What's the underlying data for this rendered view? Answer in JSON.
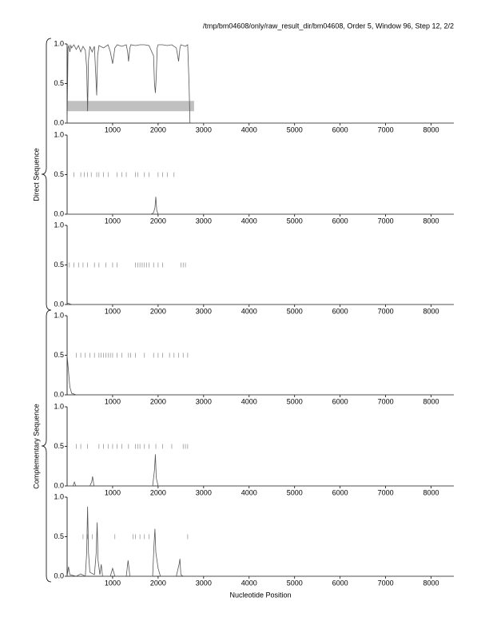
{
  "chart_data": [
    {
      "type": "line",
      "title": "/tmp/bm04608/only/raw_result_dir/bm04608, Order 5, Window 96, Step 12, 2/2",
      "x": [
        0,
        20,
        40,
        60,
        80,
        100,
        150,
        200,
        250,
        300,
        350,
        400,
        430,
        450,
        470,
        500,
        550,
        600,
        630,
        650,
        670,
        700,
        800,
        900,
        950,
        1000,
        1050,
        1100,
        1200,
        1300,
        1330,
        1350,
        1380,
        1400,
        1500,
        1600,
        1700,
        1800,
        1900,
        1920,
        1940,
        1960,
        1980,
        2000,
        2100,
        2200,
        2300,
        2400,
        2430,
        2450,
        2480,
        2500,
        2600,
        2650,
        2680,
        2700,
        8500
      ],
      "values": [
        0,
        0.95,
        0.98,
        0.9,
        0.98,
        0.95,
        0.99,
        0.93,
        0.98,
        0.9,
        0.97,
        0.92,
        0.7,
        0.15,
        0.8,
        0.97,
        0.9,
        0.97,
        0.6,
        0.35,
        0.85,
        0.98,
        0.95,
        0.99,
        0.9,
        0.75,
        0.95,
        0.99,
        0.97,
        0.99,
        0.9,
        0.78,
        0.95,
        0.99,
        0.98,
        0.99,
        0.99,
        0.98,
        0.85,
        0.5,
        0.38,
        0.6,
        0.95,
        0.99,
        0.99,
        0.98,
        0.99,
        0.95,
        0.85,
        0.78,
        0.95,
        0.99,
        0.97,
        0.99,
        0.5,
        0,
        0
      ],
      "band": {
        "x": [
          0,
          2790
        ],
        "y": [
          0.15,
          0.28
        ],
        "color": "#c0c0c0"
      },
      "color": "#555555",
      "xlim": [
        0,
        8500
      ],
      "xticks": [
        1000,
        2000,
        3000,
        4000,
        5000,
        6000,
        7000,
        8000
      ],
      "ylim": [
        0,
        1
      ],
      "yticks": [
        {
          "value": 0,
          "label": "0.0"
        },
        0.5,
        {
          "value": 1,
          "label": "1.0"
        }
      ]
    },
    {
      "type": "line",
      "ylabel": "Direct Sequence",
      "x": [
        0,
        1850,
        1900,
        1930,
        1950,
        1970,
        2000,
        8500
      ],
      "values": [
        0,
        0,
        0.02,
        0.08,
        0.22,
        0.05,
        0,
        0
      ],
      "markers": [
        150,
        300,
        380,
        450,
        530,
        650,
        700,
        800,
        900,
        1100,
        1200,
        1300,
        1500,
        1550,
        1700,
        1800,
        2000,
        2100,
        2200,
        2350
      ],
      "marker_level": 0.5,
      "color": "#555555",
      "xlim": [
        0,
        8500
      ],
      "xticks": [
        1000,
        2000,
        3000,
        4000,
        5000,
        6000,
        7000,
        8000
      ],
      "ylim": [
        0,
        1
      ],
      "yticks": [
        {
          "value": 0,
          "label": "0.0"
        },
        0.5,
        {
          "value": 1,
          "label": "1.0"
        }
      ]
    },
    {
      "type": "line",
      "x": [
        0,
        100,
        8500
      ],
      "values": [
        0.02,
        0,
        0
      ],
      "markers": [
        50,
        150,
        250,
        350,
        450,
        600,
        700,
        850,
        1000,
        1100,
        1500,
        1550,
        1600,
        1650,
        1700,
        1750,
        1800,
        1900,
        2000,
        2100,
        2500,
        2550,
        2600
      ],
      "marker_level": 0.5,
      "color": "#555555",
      "xlim": [
        0,
        8500
      ],
      "xticks": [
        1000,
        2000,
        3000,
        4000,
        5000,
        6000,
        7000,
        8000
      ],
      "ylim": [
        0,
        1
      ],
      "yticks": [
        {
          "value": 0,
          "label": "0.0"
        },
        0.5,
        {
          "value": 1,
          "label": "1.0"
        }
      ]
    },
    {
      "type": "line",
      "x": [
        0,
        30,
        60,
        100,
        200,
        8500
      ],
      "values": [
        0.5,
        0.3,
        0.1,
        0.02,
        0,
        0
      ],
      "markers": [
        200,
        300,
        400,
        500,
        600,
        700,
        750,
        800,
        850,
        900,
        950,
        1000,
        1100,
        1200,
        1350,
        1400,
        1500,
        1700,
        1900,
        2000,
        2100,
        2250,
        2350,
        2450,
        2550,
        2650
      ],
      "marker_level": 0.5,
      "color": "#555555",
      "xlim": [
        0,
        8500
      ],
      "xticks": [
        1000,
        2000,
        3000,
        4000,
        5000,
        6000,
        7000,
        8000
      ],
      "ylim": [
        0,
        1
      ],
      "yticks": [
        {
          "value": 0,
          "label": "0.0"
        },
        0.5,
        {
          "value": 1,
          "label": "1.0"
        }
      ]
    },
    {
      "type": "line",
      "ylabel": "Complementary Sequence",
      "x": [
        0,
        130,
        160,
        190,
        500,
        540,
        560,
        590,
        1880,
        1920,
        1940,
        1960,
        2000,
        8500
      ],
      "values": [
        0,
        0,
        0.05,
        0,
        0,
        0.05,
        0.12,
        0,
        0,
        0.2,
        0.4,
        0.1,
        0,
        0
      ],
      "markers": [
        200,
        300,
        450,
        700,
        800,
        900,
        1000,
        1100,
        1200,
        1350,
        1500,
        1550,
        1600,
        1700,
        1800,
        1950,
        2100,
        2300,
        2550,
        2600,
        2650
      ],
      "marker_level": 0.5,
      "color": "#555555",
      "xlim": [
        0,
        8500
      ],
      "xticks": [
        1000,
        2000,
        3000,
        4000,
        5000,
        6000,
        7000,
        8000
      ],
      "ylim": [
        0,
        1
      ],
      "yticks": [
        {
          "value": 0,
          "label": "0.0"
        },
        0.5,
        {
          "value": 1,
          "label": "1.0"
        }
      ]
    },
    {
      "type": "line",
      "xlabel": "Nucleotide Position",
      "x": [
        0,
        30,
        60,
        200,
        300,
        400,
        430,
        450,
        470,
        500,
        600,
        640,
        660,
        680,
        720,
        750,
        780,
        950,
        1000,
        1050,
        1300,
        1340,
        1380,
        1880,
        1910,
        1930,
        1950,
        2000,
        2050,
        2400,
        2460,
        2480,
        2500,
        2550,
        8500
      ],
      "values": [
        0,
        0.12,
        0.02,
        0,
        0.03,
        0,
        0.3,
        0.88,
        0.3,
        0.05,
        0.02,
        0.3,
        0.68,
        0.2,
        0.02,
        0.15,
        0,
        0,
        0.1,
        0,
        0,
        0.2,
        0,
        0,
        0.4,
        0.6,
        0.3,
        0.1,
        0,
        0,
        0.15,
        0.22,
        0.02,
        0,
        0
      ],
      "markers": [
        350,
        450,
        550,
        1050,
        1450,
        1500,
        1600,
        1700,
        1800,
        2650
      ],
      "marker_level": 0.5,
      "color": "#555555",
      "xlim": [
        0,
        8500
      ],
      "xticks": [
        1000,
        2000,
        3000,
        4000,
        5000,
        6000,
        7000,
        8000
      ],
      "ylim": [
        0,
        1
      ],
      "yticks": [
        {
          "value": 0,
          "label": "0.0"
        },
        0.5,
        {
          "value": 1,
          "label": "1.0"
        }
      ]
    }
  ]
}
